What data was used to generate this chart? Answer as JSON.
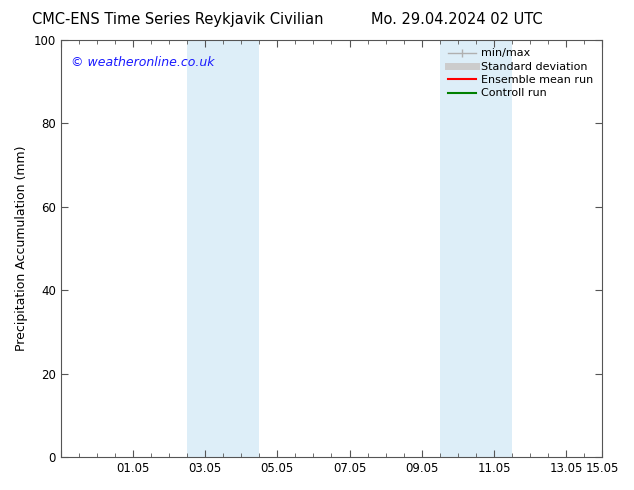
{
  "title_left": "CMC-ENS Time Series Reykjavik Civilian",
  "title_right": "Mo. 29.04.2024 02 UTC",
  "ylabel": "Precipitation Accumulation (mm)",
  "xlim": [
    0.0,
    15.0
  ],
  "ylim": [
    0,
    100
  ],
  "yticks": [
    0,
    20,
    40,
    60,
    80,
    100
  ],
  "xtick_major_positions": [
    0,
    2,
    4,
    6,
    8,
    10,
    12,
    14
  ],
  "xtick_major_labels": [
    "",
    "01.05",
    "03.05",
    "05.05",
    "07.05",
    "09.05",
    "11.05",
    "13.05"
  ],
  "xtick_minor_step": 0.5,
  "x_end_label": "15.05",
  "x_end_pos": 15.0,
  "shaded_bands": [
    {
      "x_start": 3.5,
      "x_end": 5.5
    },
    {
      "x_start": 10.5,
      "x_end": 12.5
    }
  ],
  "shaded_color": "#ddeef8",
  "legend_items": [
    {
      "label": "min/max",
      "color": "#b0b0b0",
      "lw": 1.0,
      "type": "errorbar"
    },
    {
      "label": "Standard deviation",
      "color": "#cccccc",
      "lw": 5,
      "type": "line"
    },
    {
      "label": "Ensemble mean run",
      "color": "#ff0000",
      "lw": 1.5,
      "type": "line"
    },
    {
      "label": "Controll run",
      "color": "#008000",
      "lw": 1.5,
      "type": "line"
    }
  ],
  "watermark": "© weatheronline.co.uk",
  "watermark_color": "#1a1aff",
  "bg_color": "#ffffff",
  "plot_bg_color": "#ffffff",
  "font_size_title": 10.5,
  "font_size_axis": 9,
  "font_size_tick": 8.5,
  "font_size_legend": 8,
  "font_size_watermark": 9,
  "spine_color": "#555555"
}
